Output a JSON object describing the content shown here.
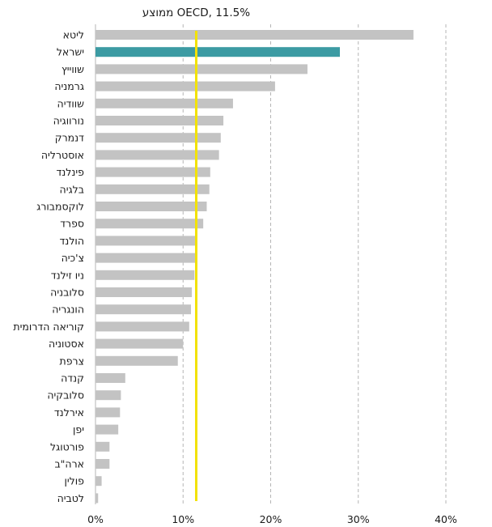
{
  "chart_data": {
    "type": "bar",
    "orientation": "horizontal",
    "title": "",
    "xlabel": "",
    "ylabel": "",
    "xlim": [
      0,
      40
    ],
    "x_ticks": [
      0,
      10,
      20,
      30,
      40
    ],
    "x_tick_format": "{v}%",
    "grid": "vertical-dashed",
    "reference_line": {
      "label": "ממוצע OECD, 11.5%",
      "value": 11.5,
      "color": "#f2e205"
    },
    "bar_color": "#c3c3c3",
    "highlight_color": "#3c9ba3",
    "highlight_category": "ישראל",
    "categories": [
      "ליטא",
      "ישראל",
      "שווייץ",
      "גרמניה",
      "שוודיה",
      "נורווגיה",
      "דנמרק",
      "אוסטרליה",
      "פינלנד",
      "בלגיה",
      "לוקסמבורג",
      "ספרד",
      "הולנד",
      "צ'כיה",
      "ניו זילנד",
      "סלובניה",
      "הונגריה",
      "קוריאה הדרומית",
      "אסטוניה",
      "צרפת",
      "קנדה",
      "סלובקיה",
      "אירלנד",
      "יפן",
      "פורטוגל",
      "ארה\"ב",
      "פולין",
      "לטביה"
    ],
    "values": [
      36.3,
      27.9,
      24.2,
      20.5,
      15.7,
      14.6,
      14.3,
      14.1,
      13.1,
      13.0,
      12.7,
      12.3,
      11.6,
      11.4,
      11.3,
      11.0,
      10.9,
      10.7,
      10.0,
      9.4,
      3.4,
      2.9,
      2.8,
      2.6,
      1.6,
      1.6,
      0.7,
      0.3
    ]
  }
}
